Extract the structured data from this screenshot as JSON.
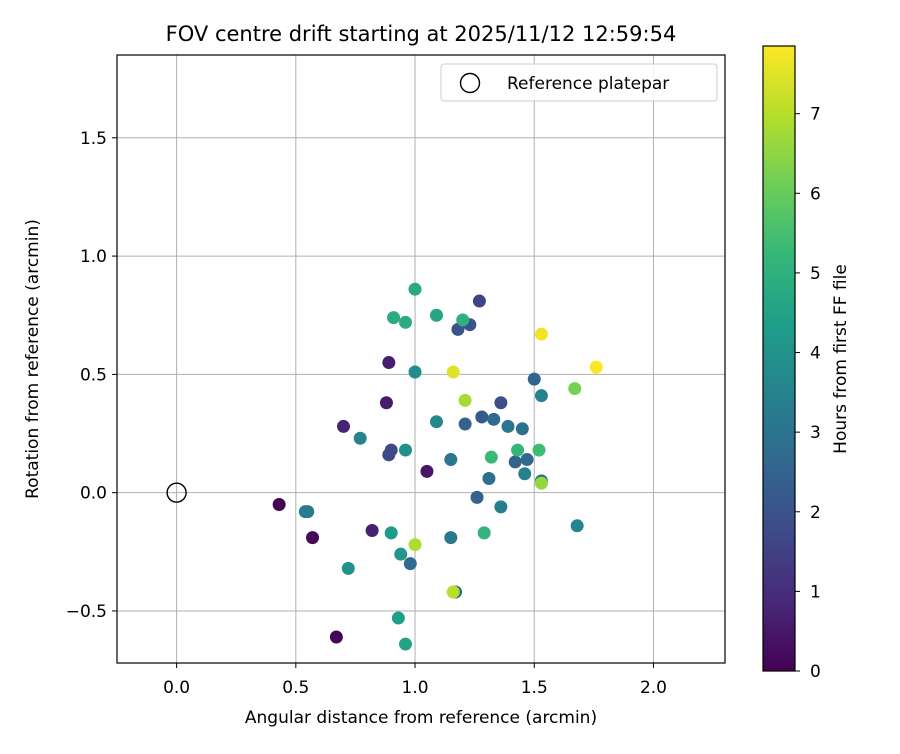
{
  "chart_data": {
    "type": "scatter",
    "title": "FOV centre drift starting at 2025/11/12 12:59:54",
    "xlabel": "Angular distance from reference (arcmin)",
    "ylabel": "Rotation from reference (arcmin)",
    "xlim": [
      -0.25,
      2.3
    ],
    "ylim": [
      -0.72,
      1.85
    ],
    "grid": true,
    "x_ticks": [
      0.0,
      0.5,
      1.0,
      1.5,
      2.0
    ],
    "x_tick_labels": [
      "0.0",
      "0.5",
      "1.0",
      "1.5",
      "2.0"
    ],
    "y_ticks": [
      -0.5,
      0.0,
      0.5,
      1.0,
      1.5
    ],
    "y_tick_labels": [
      "−0.5",
      "0.0",
      "0.5",
      "1.0",
      "1.5"
    ],
    "legend": {
      "position": "top-right",
      "entries": [
        "Reference platepar"
      ]
    },
    "reference_point": {
      "x": 0.0,
      "y": 0.0,
      "label": "Reference platepar"
    },
    "colorbar": {
      "label": "Hours from first FF file",
      "range": [
        0,
        7.85
      ],
      "ticks": [
        0,
        1,
        2,
        3,
        4,
        5,
        6,
        7
      ],
      "tick_labels": [
        "0",
        "1",
        "2",
        "3",
        "4",
        "5",
        "6",
        "7"
      ],
      "colormap": [
        "#440154",
        "#482878",
        "#3e4a89",
        "#31688e",
        "#26828e",
        "#1f9e89",
        "#35b779",
        "#6ece58",
        "#b5de2b",
        "#fde725"
      ]
    },
    "points": [
      {
        "x": 0.43,
        "y": -0.05,
        "h": 0.0
      },
      {
        "x": 0.67,
        "y": -0.61,
        "h": 0.1
      },
      {
        "x": 0.57,
        "y": -0.19,
        "h": 0.15
      },
      {
        "x": 1.05,
        "y": 0.09,
        "h": 0.5
      },
      {
        "x": 0.88,
        "y": 0.38,
        "h": 0.6
      },
      {
        "x": 0.89,
        "y": 0.55,
        "h": 0.65
      },
      {
        "x": 0.82,
        "y": -0.16,
        "h": 0.7
      },
      {
        "x": 0.7,
        "y": 0.28,
        "h": 0.75
      },
      {
        "x": 1.27,
        "y": 0.81,
        "h": 1.6
      },
      {
        "x": 0.89,
        "y": 0.16,
        "h": 1.7
      },
      {
        "x": 0.9,
        "y": 0.18,
        "h": 1.8
      },
      {
        "x": 1.36,
        "y": 0.38,
        "h": 1.9
      },
      {
        "x": 1.18,
        "y": 0.69,
        "h": 2.0
      },
      {
        "x": 1.23,
        "y": 0.71,
        "h": 2.0
      },
      {
        "x": 1.28,
        "y": 0.32,
        "h": 2.2
      },
      {
        "x": 1.21,
        "y": 0.29,
        "h": 2.4
      },
      {
        "x": 1.26,
        "y": -0.02,
        "h": 2.4
      },
      {
        "x": 1.5,
        "y": 0.48,
        "h": 2.5
      },
      {
        "x": 1.42,
        "y": 0.13,
        "h": 2.5
      },
      {
        "x": 1.33,
        "y": 0.31,
        "h": 2.7
      },
      {
        "x": 1.47,
        "y": 0.14,
        "h": 2.7
      },
      {
        "x": 1.17,
        "y": -0.42,
        "h": 2.8
      },
      {
        "x": 0.98,
        "y": -0.3,
        "h": 2.8
      },
      {
        "x": 1.31,
        "y": 0.06,
        "h": 2.9
      },
      {
        "x": 1.45,
        "y": 0.27,
        "h": 2.9
      },
      {
        "x": 1.53,
        "y": 0.05,
        "h": 3.0
      },
      {
        "x": 1.15,
        "y": 0.14,
        "h": 3.1
      },
      {
        "x": 1.39,
        "y": 0.28,
        "h": 3.1
      },
      {
        "x": 1.15,
        "y": -0.19,
        "h": 3.2
      },
      {
        "x": 0.55,
        "y": -0.08,
        "h": 3.2
      },
      {
        "x": 0.54,
        "y": -0.08,
        "h": 3.3
      },
      {
        "x": 1.36,
        "y": -0.06,
        "h": 3.4
      },
      {
        "x": 1.46,
        "y": 0.08,
        "h": 3.4
      },
      {
        "x": 0.77,
        "y": 0.23,
        "h": 3.5
      },
      {
        "x": 1.53,
        "y": 0.41,
        "h": 3.5
      },
      {
        "x": 1.68,
        "y": -0.14,
        "h": 3.6
      },
      {
        "x": 1.09,
        "y": 0.3,
        "h": 3.7
      },
      {
        "x": 1.0,
        "y": 0.51,
        "h": 3.8
      },
      {
        "x": 0.96,
        "y": 0.18,
        "h": 3.9
      },
      {
        "x": 0.72,
        "y": -0.32,
        "h": 4.0
      },
      {
        "x": 0.94,
        "y": -0.26,
        "h": 4.1
      },
      {
        "x": 0.9,
        "y": -0.17,
        "h": 4.3
      },
      {
        "x": 0.93,
        "y": -0.53,
        "h": 4.4
      },
      {
        "x": 0.96,
        "y": -0.64,
        "h": 4.5
      },
      {
        "x": 1.09,
        "y": 0.75,
        "h": 4.6
      },
      {
        "x": 1.0,
        "y": 0.86,
        "h": 4.7
      },
      {
        "x": 0.96,
        "y": 0.72,
        "h": 4.8
      },
      {
        "x": 0.91,
        "y": 0.74,
        "h": 4.8
      },
      {
        "x": 1.2,
        "y": 0.73,
        "h": 5.0
      },
      {
        "x": 1.29,
        "y": -0.17,
        "h": 5.1
      },
      {
        "x": 1.43,
        "y": 0.18,
        "h": 5.2
      },
      {
        "x": 1.32,
        "y": 0.15,
        "h": 5.3
      },
      {
        "x": 1.52,
        "y": 0.18,
        "h": 5.4
      },
      {
        "x": 1.67,
        "y": 0.44,
        "h": 6.2
      },
      {
        "x": 1.53,
        "y": 0.04,
        "h": 6.6
      },
      {
        "x": 1.21,
        "y": 0.39,
        "h": 6.8
      },
      {
        "x": 1.0,
        "y": -0.22,
        "h": 6.9
      },
      {
        "x": 1.16,
        "y": -0.42,
        "h": 7.0
      },
      {
        "x": 1.16,
        "y": 0.51,
        "h": 7.5
      },
      {
        "x": 1.53,
        "y": 0.67,
        "h": 7.7
      },
      {
        "x": 1.76,
        "y": 0.53,
        "h": 7.8
      }
    ]
  }
}
